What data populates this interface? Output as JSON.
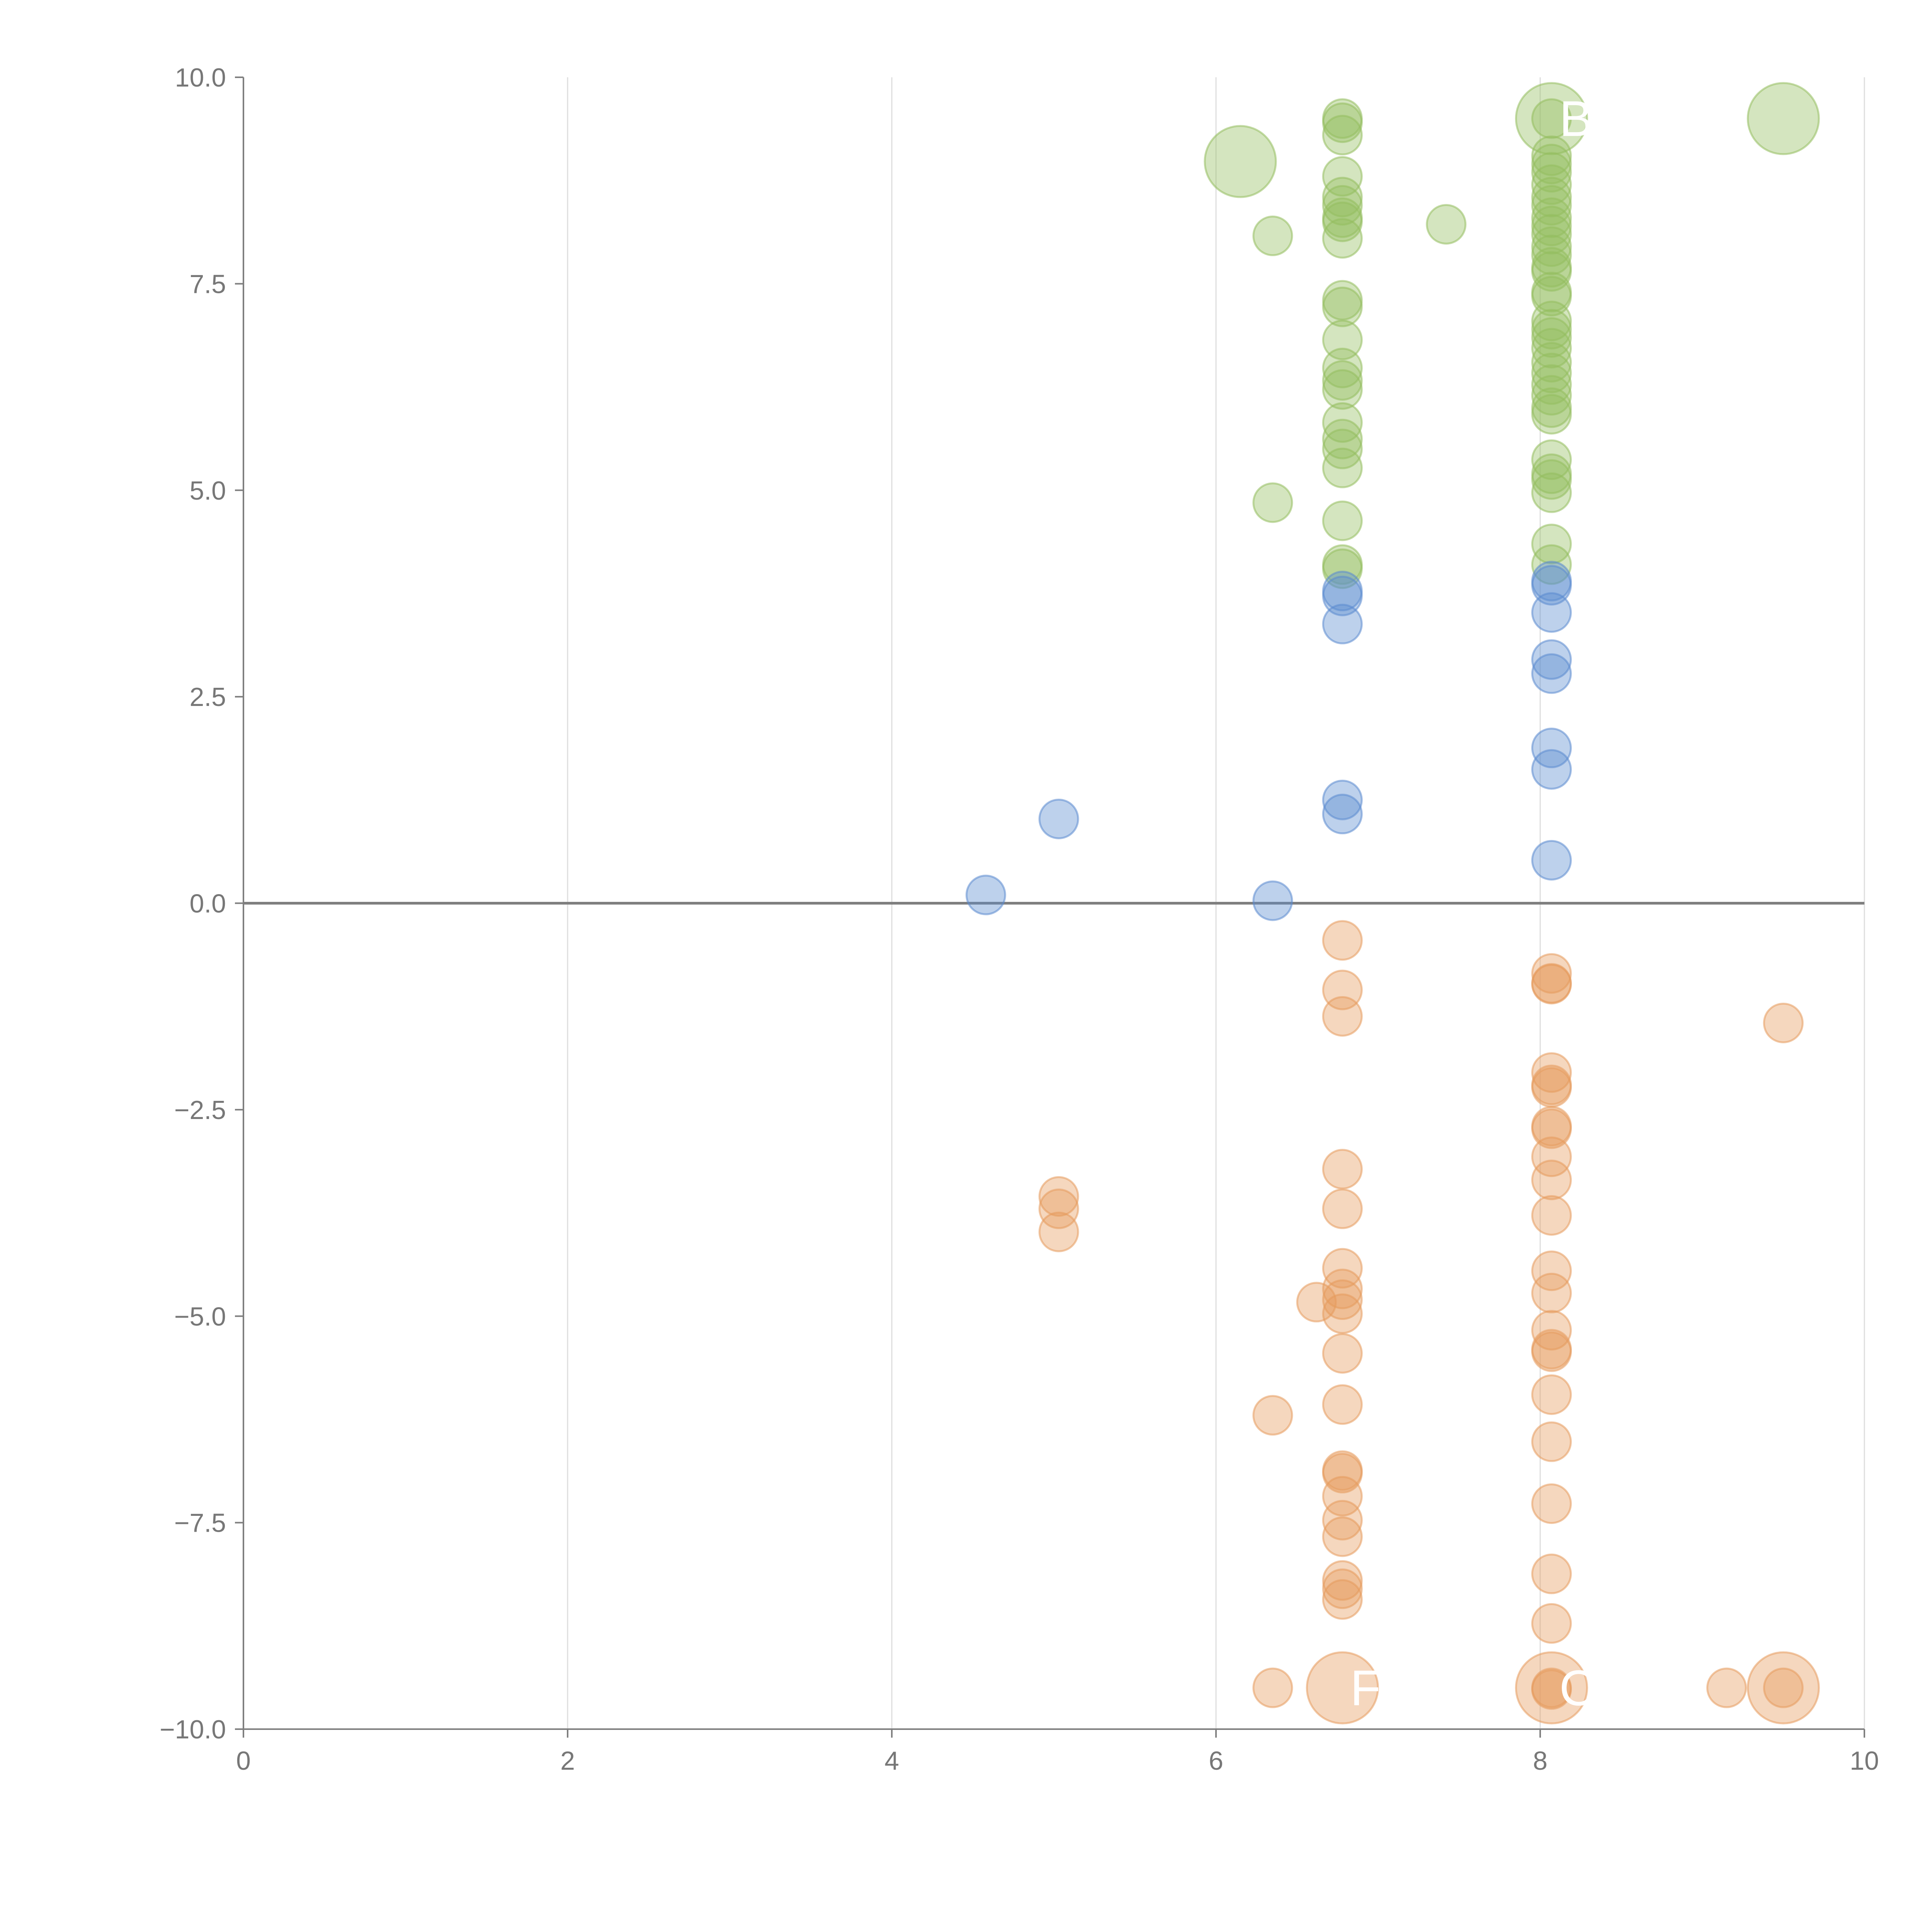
{
  "chart_data": {
    "type": "scatter",
    "title": "",
    "xlabel": "",
    "ylabel": "",
    "xlim": [
      0,
      10
    ],
    "ylim": [
      -10,
      10
    ],
    "x_ticks": [
      {
        "value": 0,
        "label": "0"
      },
      {
        "value": 2,
        "label": "2"
      },
      {
        "value": 4,
        "label": "4"
      },
      {
        "value": 6,
        "label": "6"
      },
      {
        "value": 8,
        "label": "8"
      },
      {
        "value": 10,
        "label": "10"
      }
    ],
    "y_ticks": [
      {
        "value": 10,
        "label": "10.0"
      },
      {
        "value": 7.5,
        "label": "7.5"
      },
      {
        "value": 5,
        "label": "5.0"
      },
      {
        "value": 2.5,
        "label": "2.5"
      },
      {
        "value": 0,
        "label": "0.0"
      },
      {
        "value": -2.5,
        "label": "−2.5"
      },
      {
        "value": -5,
        "label": "−5.0"
      },
      {
        "value": -7.5,
        "label": "−7.5"
      },
      {
        "value": -10,
        "label": "−10.0"
      }
    ],
    "grid": "vertical",
    "zero_line": true,
    "series": [
      {
        "color": "#94bd5e",
        "points": [
          {
            "x": 6.78,
            "y": 9.5
          },
          {
            "x": 6.78,
            "y": 9.45
          },
          {
            "x": 6.78,
            "y": 9.3
          },
          {
            "x": 6.15,
            "y": 8.98,
            "size": "large"
          },
          {
            "x": 6.78,
            "y": 8.8
          },
          {
            "x": 6.78,
            "y": 8.55
          },
          {
            "x": 6.78,
            "y": 8.45
          },
          {
            "x": 6.78,
            "y": 8.3
          },
          {
            "x": 6.78,
            "y": 8.25
          },
          {
            "x": 6.78,
            "y": 8.05
          },
          {
            "x": 6.35,
            "y": 8.08
          },
          {
            "x": 7.42,
            "y": 8.22
          },
          {
            "x": 6.78,
            "y": 7.3
          },
          {
            "x": 6.78,
            "y": 7.22
          },
          {
            "x": 6.78,
            "y": 6.82
          },
          {
            "x": 6.78,
            "y": 6.48
          },
          {
            "x": 6.78,
            "y": 6.33
          },
          {
            "x": 6.78,
            "y": 6.22
          },
          {
            "x": 6.78,
            "y": 5.82
          },
          {
            "x": 6.78,
            "y": 5.62
          },
          {
            "x": 6.78,
            "y": 5.5
          },
          {
            "x": 6.78,
            "y": 5.27
          },
          {
            "x": 6.35,
            "y": 4.85
          },
          {
            "x": 6.78,
            "y": 4.63
          },
          {
            "x": 6.78,
            "y": 4.1
          },
          {
            "x": 6.78,
            "y": 4.05
          },
          {
            "x": 8.07,
            "y": 9.5,
            "size": "large"
          },
          {
            "x": 8.07,
            "y": 9.5
          },
          {
            "x": 8.07,
            "y": 9.05
          },
          {
            "x": 8.07,
            "y": 8.95
          },
          {
            "x": 8.07,
            "y": 8.85
          },
          {
            "x": 8.07,
            "y": 8.7
          },
          {
            "x": 8.07,
            "y": 8.55
          },
          {
            "x": 8.07,
            "y": 8.45
          },
          {
            "x": 8.07,
            "y": 8.3
          },
          {
            "x": 8.07,
            "y": 8.2
          },
          {
            "x": 8.07,
            "y": 8.1
          },
          {
            "x": 8.07,
            "y": 7.95
          },
          {
            "x": 8.07,
            "y": 7.85
          },
          {
            "x": 8.07,
            "y": 7.7
          },
          {
            "x": 8.07,
            "y": 7.65
          },
          {
            "x": 8.07,
            "y": 7.4
          },
          {
            "x": 8.07,
            "y": 7.35
          },
          {
            "x": 8.07,
            "y": 7.05
          },
          {
            "x": 8.07,
            "y": 6.95
          },
          {
            "x": 8.07,
            "y": 6.85
          },
          {
            "x": 8.07,
            "y": 6.72
          },
          {
            "x": 8.07,
            "y": 6.55
          },
          {
            "x": 8.07,
            "y": 6.42
          },
          {
            "x": 8.07,
            "y": 6.28
          },
          {
            "x": 8.07,
            "y": 6.15
          },
          {
            "x": 8.07,
            "y": 6.0
          },
          {
            "x": 8.07,
            "y": 5.92
          },
          {
            "x": 8.07,
            "y": 5.37
          },
          {
            "x": 8.07,
            "y": 5.2
          },
          {
            "x": 8.07,
            "y": 5.13
          },
          {
            "x": 8.07,
            "y": 4.97
          },
          {
            "x": 8.07,
            "y": 4.35
          },
          {
            "x": 8.07,
            "y": 4.1
          },
          {
            "x": 9.5,
            "y": 9.5,
            "size": "large"
          }
        ]
      },
      {
        "color": "#5b8bd0",
        "points": [
          {
            "x": 6.78,
            "y": 3.78
          },
          {
            "x": 6.78,
            "y": 3.72
          },
          {
            "x": 6.78,
            "y": 3.38
          },
          {
            "x": 6.78,
            "y": 1.25
          },
          {
            "x": 6.78,
            "y": 1.08
          },
          {
            "x": 8.07,
            "y": 3.9
          },
          {
            "x": 8.07,
            "y": 3.85
          },
          {
            "x": 8.07,
            "y": 3.52
          },
          {
            "x": 8.07,
            "y": 2.95
          },
          {
            "x": 8.07,
            "y": 2.78
          },
          {
            "x": 8.07,
            "y": 1.88
          },
          {
            "x": 8.07,
            "y": 1.62
          },
          {
            "x": 8.07,
            "y": 0.52
          },
          {
            "x": 5.03,
            "y": 1.02
          },
          {
            "x": 4.58,
            "y": 0.1
          },
          {
            "x": 6.35,
            "y": 0.03
          }
        ]
      },
      {
        "color": "#e59a5c",
        "points": [
          {
            "x": 6.78,
            "y": -0.45
          },
          {
            "x": 6.78,
            "y": -1.05
          },
          {
            "x": 6.78,
            "y": -1.37
          },
          {
            "x": 6.78,
            "y": -3.22
          },
          {
            "x": 6.78,
            "y": -3.7
          },
          {
            "x": 6.78,
            "y": -4.42
          },
          {
            "x": 6.78,
            "y": -4.67
          },
          {
            "x": 6.78,
            "y": -4.8
          },
          {
            "x": 6.78,
            "y": -4.97
          },
          {
            "x": 6.62,
            "y": -4.83
          },
          {
            "x": 6.78,
            "y": -5.45
          },
          {
            "x": 6.78,
            "y": -6.07
          },
          {
            "x": 6.78,
            "y": -6.87
          },
          {
            "x": 6.78,
            "y": -6.9
          },
          {
            "x": 6.78,
            "y": -7.18
          },
          {
            "x": 6.78,
            "y": -7.47
          },
          {
            "x": 6.78,
            "y": -7.67
          },
          {
            "x": 6.78,
            "y": -8.2
          },
          {
            "x": 6.78,
            "y": -8.3
          },
          {
            "x": 6.78,
            "y": -8.43
          },
          {
            "x": 6.78,
            "y": -9.5,
            "size": "large"
          },
          {
            "x": 6.35,
            "y": -6.2
          },
          {
            "x": 6.35,
            "y": -9.5
          },
          {
            "x": 5.03,
            "y": -3.55
          },
          {
            "x": 5.03,
            "y": -3.7
          },
          {
            "x": 5.03,
            "y": -3.98
          },
          {
            "x": 8.07,
            "y": -0.85
          },
          {
            "x": 8.07,
            "y": -0.97
          },
          {
            "x": 8.07,
            "y": -0.98
          },
          {
            "x": 8.07,
            "y": -2.05
          },
          {
            "x": 8.07,
            "y": -2.2
          },
          {
            "x": 8.07,
            "y": -2.23
          },
          {
            "x": 8.07,
            "y": -2.7
          },
          {
            "x": 8.07,
            "y": -2.73
          },
          {
            "x": 8.07,
            "y": -3.07
          },
          {
            "x": 8.07,
            "y": -3.35
          },
          {
            "x": 8.07,
            "y": -3.78
          },
          {
            "x": 8.07,
            "y": -4.45
          },
          {
            "x": 8.07,
            "y": -4.72
          },
          {
            "x": 8.07,
            "y": -5.17
          },
          {
            "x": 8.07,
            "y": -5.4
          },
          {
            "x": 8.07,
            "y": -5.43
          },
          {
            "x": 8.07,
            "y": -5.95
          },
          {
            "x": 8.07,
            "y": -6.52
          },
          {
            "x": 8.07,
            "y": -7.27
          },
          {
            "x": 8.07,
            "y": -8.12
          },
          {
            "x": 8.07,
            "y": -8.72
          },
          {
            "x": 8.07,
            "y": -9.5,
            "size": "large"
          },
          {
            "x": 8.07,
            "y": -9.5
          },
          {
            "x": 8.07,
            "y": -9.52
          },
          {
            "x": 9.15,
            "y": -9.5
          },
          {
            "x": 9.5,
            "y": -1.45
          },
          {
            "x": 9.5,
            "y": -9.5,
            "size": "large"
          },
          {
            "x": 9.5,
            "y": -9.5
          }
        ]
      }
    ],
    "annotations": [
      {
        "text": "B",
        "x": 8.07,
        "y": 9.5
      },
      {
        "text": "F",
        "x": 6.78,
        "y": -9.5
      },
      {
        "text": "C",
        "x": 8.07,
        "y": -9.5
      }
    ]
  }
}
